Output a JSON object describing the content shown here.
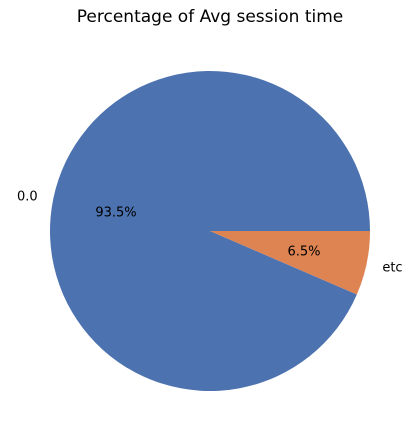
{
  "chart_data": {
    "type": "pie",
    "title": "Percentage of Avg session time",
    "slices": [
      {
        "label": "0.0",
        "percent": 93.5,
        "percent_label": "93.5%",
        "color": "#4c72b0"
      },
      {
        "label": "etc",
        "percent": 6.5,
        "percent_label": "6.5%",
        "color": "#dd8452"
      }
    ],
    "start_angle_deg": 0,
    "direction": "counterclockwise"
  }
}
